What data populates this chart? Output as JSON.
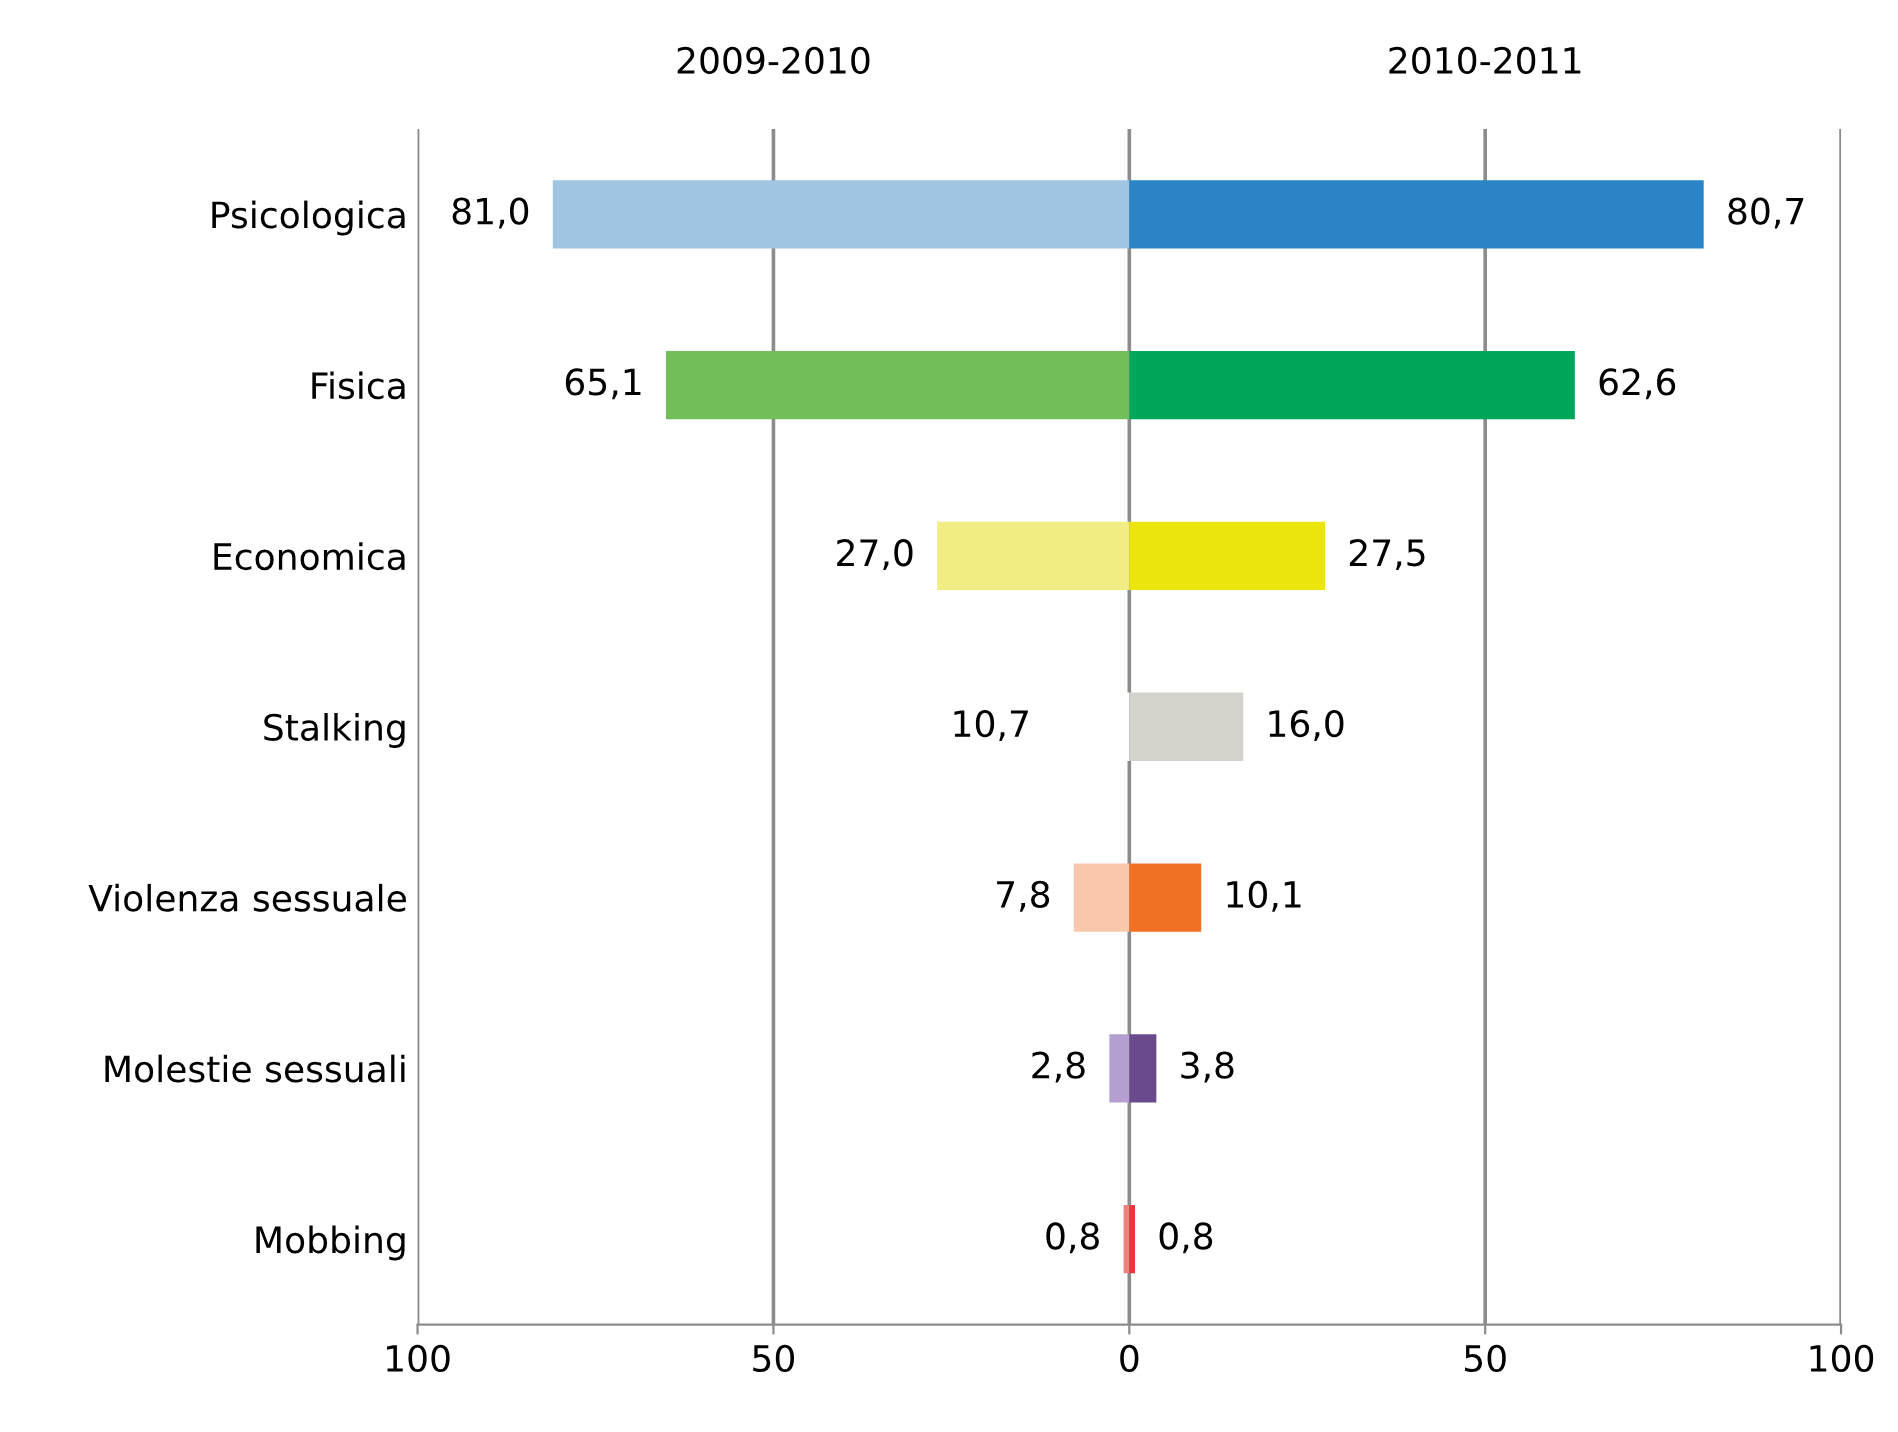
{
  "chart_data": {
    "type": "bar",
    "orientation": "horizontal",
    "categories": [
      "Psicologica",
      "Fisica",
      "Economica",
      "Stalking",
      "Violenza sessuale",
      "Molestie sessuali",
      "Mobbing"
    ],
    "series": [
      {
        "name": "2009-2010",
        "values": [
          81.0,
          65.1,
          27.0,
          10.7,
          7.8,
          2.8,
          0.8
        ],
        "base": [
          -81.0,
          -65.1,
          -27.0,
          -10.7,
          -7.8,
          -2.8,
          -0.8
        ],
        "value_labels": [
          "81,0",
          "65,1",
          "27,0",
          "10,7",
          "7,8",
          "2,8",
          "0,8"
        ],
        "colors": [
          "#9fc5e3",
          "#72bf5a",
          "#f2ec85",
          "#ffffff",
          "#f9c8ac",
          "#b4a0cf",
          "#f08080"
        ]
      },
      {
        "name": "2010-2011",
        "values": [
          80.7,
          62.6,
          27.5,
          16.0,
          10.1,
          3.8,
          0.8
        ],
        "value_labels": [
          "80,7",
          "62,6",
          "27,5",
          "16,0",
          "10,1",
          "3,8",
          "0,8"
        ],
        "colors": [
          "#2a84c6",
          "#00a65a",
          "#ede50e",
          "#d3d3cb",
          "#f07024",
          "#6a4a8c",
          "#e8383d"
        ]
      }
    ],
    "xlim": [
      -100,
      100
    ],
    "xticks": [
      {
        "value": -100,
        "label": "100"
      },
      {
        "value": -50,
        "label": "50"
      },
      0,
      50,
      100
    ],
    "grid": "x",
    "legend": false
  }
}
